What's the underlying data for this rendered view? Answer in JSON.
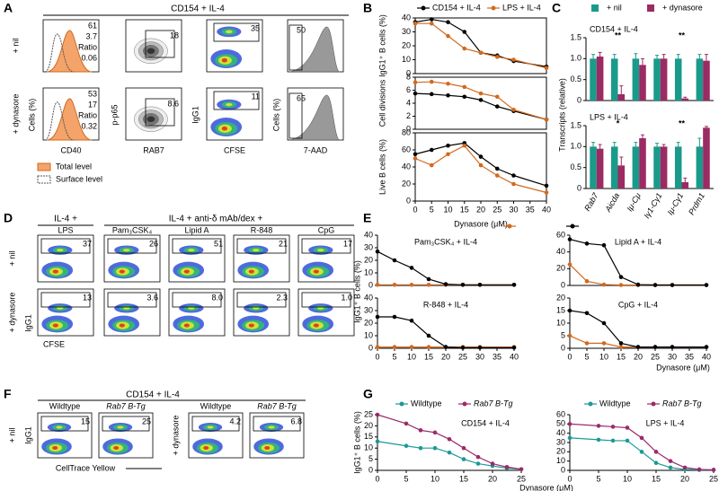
{
  "panel_letters": [
    "A",
    "B",
    "C",
    "D",
    "E",
    "F",
    "G"
  ],
  "flow": {
    "A": {
      "header": "CD154 + IL-4",
      "rows": [
        "+ nil",
        "+ dynasore"
      ],
      "xlabels": [
        "CD40",
        "RAB7",
        "CFSE",
        "7-AAD"
      ],
      "ylabels": [
        "Cells (%)",
        "p-p65",
        "IgG1",
        "Cells (%)"
      ],
      "hist_labels": [
        [
          "61",
          "3.7",
          "Ratio",
          "0.06"
        ],
        [
          "53",
          "17",
          "Ratio",
          "0.32"
        ]
      ],
      "gates": [
        [
          "18",
          "35",
          "50"
        ],
        [
          "8.6",
          "11",
          "65"
        ]
      ],
      "legend": [
        "Total level",
        "Surface level"
      ]
    },
    "D": {
      "headers": [
        "IL-4 +",
        "IL-4 + anti-δ mAb/dex +"
      ],
      "columns": [
        "LPS",
        "Pam₃CSK₄",
        "Lipid A",
        "R-848",
        "CpG"
      ],
      "rows": [
        "+ nil",
        "+ dynasore"
      ],
      "gates": [
        [
          "37",
          "26",
          "51",
          "21",
          "17"
        ],
        [
          "13",
          "3.6",
          "8.0",
          "2.3",
          "1.0"
        ]
      ],
      "xlabel": "CFSE",
      "ylabel": "IgG1"
    },
    "F": {
      "header": "CD154 + IL-4",
      "columns": [
        "Wildtype",
        "Rab7 B-Tg",
        "Wildtype",
        "Rab7 B-Tg"
      ],
      "rows": [
        "+ nil",
        "+ dynasore"
      ],
      "gates": [
        "15",
        "25",
        "4.2",
        "6.8"
      ],
      "xlabel": "CellTrace Yellow",
      "ylabel": "IgG1"
    }
  },
  "chart_data": [
    {
      "type": "line",
      "ylabel": "IgG1⁺ B cells (%)",
      "x": [
        0,
        5,
        10,
        15,
        20,
        25,
        30,
        40
      ],
      "xlim": [
        0,
        40
      ],
      "ylim": [
        0,
        40
      ],
      "yticks": [
        0,
        10,
        20,
        30,
        40
      ],
      "series": [
        {
          "name": "CD154 + IL-4",
          "color": "#000000",
          "values": [
            37,
            39,
            37,
            30,
            15,
            13,
            9,
            5
          ]
        },
        {
          "name": "LPS + IL-4",
          "color": "#d2691e",
          "values": [
            36,
            36,
            27,
            18,
            15,
            12,
            10,
            4
          ]
        }
      ]
    },
    {
      "type": "line",
      "ylabel": "Cell divisions",
      "x": [
        0,
        5,
        10,
        15,
        20,
        25,
        30,
        40
      ],
      "xlim": [
        0,
        40
      ],
      "ylim": [
        0,
        8
      ],
      "yticks": [
        0,
        2,
        4,
        6,
        8
      ],
      "series": [
        {
          "color": "#000000",
          "values": [
            5.5,
            5.4,
            5.2,
            5.0,
            4.5,
            3.5,
            2.8,
            1.5
          ]
        },
        {
          "color": "#d2691e",
          "values": [
            7.2,
            7.3,
            7.0,
            6.5,
            5.5,
            5.0,
            3.0,
            1.5
          ]
        }
      ]
    },
    {
      "type": "line",
      "ylabel": "Live B cells (%)",
      "xlabel": "Dynasore (μM)",
      "x": [
        0,
        5,
        10,
        15,
        20,
        25,
        30,
        40
      ],
      "xlim": [
        0,
        40
      ],
      "xticks": [
        0,
        5,
        10,
        15,
        20,
        25,
        30,
        35,
        40
      ],
      "ylim": [
        0,
        80
      ],
      "yticks": [
        0,
        20,
        40,
        60,
        80
      ],
      "series": [
        {
          "color": "#000000",
          "values": [
            55,
            60,
            65,
            68,
            52,
            38,
            30,
            18
          ]
        },
        {
          "color": "#d2691e",
          "values": [
            50,
            42,
            55,
            65,
            42,
            30,
            20,
            10
          ]
        }
      ]
    },
    {
      "type": "bar",
      "title": "CD154 + IL-4",
      "ylim": [
        0,
        1.5
      ],
      "yticks": [
        0,
        0.5,
        {
          "value": 1,
          "label": "1.0"
        },
        1.5
      ],
      "annotations": [
        null,
        "**",
        null,
        null,
        "**",
        null
      ],
      "series": [
        {
          "name": "+ nil",
          "color": "#1a9a8a",
          "values": [
            1,
            1,
            1,
            1,
            1,
            1
          ],
          "errors": [
            0.1,
            0.1,
            0.12,
            0.08,
            0.1,
            0.1
          ]
        },
        {
          "name": "+ dynasore",
          "color": "#9c2a63",
          "values": [
            1.05,
            0.15,
            0.85,
            1.0,
            0.05,
            0.95
          ],
          "errors": [
            0.1,
            0.2,
            0.15,
            0.1,
            0.03,
            0.15
          ]
        }
      ]
    },
    {
      "type": "bar",
      "title": "LPS + IL-4",
      "ylabel": "Transcripts (relative)",
      "categories": [
        "Rab7",
        "Aicda",
        "Iμ-Cμ",
        "Iγ1-Cγ1",
        "Iμ-Cγ1",
        "Prdm1"
      ],
      "ylim": [
        0,
        1.5
      ],
      "yticks": [
        0,
        0.5,
        {
          "value": 1,
          "label": "1.0"
        },
        1.5
      ],
      "annotations": [
        null,
        "*",
        null,
        null,
        "**",
        null
      ],
      "series": [
        {
          "color": "#1a9a8a",
          "values": [
            1,
            1,
            1,
            1,
            1,
            1
          ],
          "errors": [
            0.1,
            0.1,
            0.1,
            0.08,
            0.1,
            0.2
          ]
        },
        {
          "color": "#9c2a63",
          "values": [
            0.95,
            0.55,
            1.2,
            1.0,
            0.15,
            1.45
          ],
          "errors": [
            0.1,
            0.2,
            0.08,
            0.05,
            0.1,
            0.03
          ]
        }
      ]
    },
    {
      "type": "line",
      "title": "Pam₃CSK₄ + IL-4",
      "x": [
        0,
        5,
        10,
        15,
        20,
        25,
        30,
        40
      ],
      "xlim": [
        0,
        40
      ],
      "ylim": [
        0,
        40
      ],
      "yticks": [
        0,
        10,
        20,
        30,
        40
      ],
      "series": [
        {
          "name": "+ nil",
          "color": "#d2691e",
          "values": [
            0.5,
            0.5,
            0.5,
            0.5,
            0.5,
            0.5,
            0.5,
            0.5
          ]
        },
        {
          "name": "+ anti-δ mAb/dex",
          "color": "#000000",
          "values": [
            27,
            20,
            14,
            5,
            1,
            0.5,
            0.5,
            0.5
          ]
        }
      ]
    },
    {
      "type": "line",
      "title": "Lipid A + IL-4",
      "x": [
        0,
        5,
        10,
        15,
        20,
        25,
        30,
        40
      ],
      "xlim": [
        0,
        40
      ],
      "ylim": [
        0,
        60
      ],
      "yticks": [
        0,
        20,
        40,
        60
      ],
      "series": [
        {
          "color": "#d2691e",
          "values": [
            25,
            5,
            1,
            0.5,
            0.5,
            0.5,
            0.5,
            0.5
          ]
        },
        {
          "color": "#000000",
          "values": [
            55,
            50,
            48,
            10,
            1,
            0.5,
            0.5,
            0.5
          ]
        }
      ]
    },
    {
      "type": "line",
      "title": "R-848 + IL-4",
      "ylabel": "IgG1⁺ B cells (%)",
      "x": [
        0,
        5,
        10,
        15,
        20,
        25,
        30,
        40
      ],
      "xlim": [
        0,
        40
      ],
      "xticks": [
        0,
        5,
        10,
        15,
        20,
        25,
        30,
        35,
        40
      ],
      "ylim": [
        0,
        40
      ],
      "yticks": [
        0,
        10,
        20,
        30,
        40
      ],
      "series": [
        {
          "color": "#d2691e",
          "values": [
            1,
            1,
            1,
            1,
            1,
            1,
            1,
            1
          ]
        },
        {
          "color": "#000000",
          "values": [
            25,
            25,
            22,
            10,
            1,
            0.5,
            0.5,
            0.5
          ]
        }
      ]
    },
    {
      "type": "line",
      "title": "CpG + IL-4",
      "xlabel": "Dynasore (μM)",
      "x": [
        0,
        5,
        10,
        15,
        20,
        25,
        30,
        40
      ],
      "xlim": [
        0,
        40
      ],
      "xticks": [
        0,
        5,
        10,
        15,
        20,
        25,
        30,
        35,
        40
      ],
      "ylim": [
        0,
        20
      ],
      "yticks": [
        0,
        5,
        10,
        15,
        20
      ],
      "series": [
        {
          "color": "#d2691e",
          "values": [
            5,
            2,
            2,
            0.5,
            0.5,
            0.5,
            0.5,
            0.5
          ]
        },
        {
          "color": "#000000",
          "values": [
            15,
            14,
            10,
            2,
            0.5,
            0.5,
            0.5,
            0.5
          ]
        }
      ]
    },
    {
      "type": "line",
      "title": "CD154 + IL-4",
      "ylabel": "IgG1⁺ B cells (%)",
      "xlabel": "Dynasore (μM)",
      "x": [
        0,
        5,
        7.5,
        10,
        12.5,
        15,
        17.5,
        20,
        22.5,
        25
      ],
      "xlim": [
        0,
        25
      ],
      "xticks": [
        0,
        5,
        10,
        15,
        20,
        25
      ],
      "ylim": [
        0,
        25
      ],
      "yticks": [
        0,
        5,
        10,
        15,
        20,
        25
      ],
      "series": [
        {
          "name": "Wildtype",
          "color": "#1b9a95",
          "values": [
            13,
            11,
            10,
            10,
            8,
            5,
            3,
            2,
            1,
            0.5
          ]
        },
        {
          "name": "Rab7 B-Tg",
          "color": "#9b2a6a",
          "values": [
            25,
            21,
            18,
            17,
            14,
            10,
            6,
            3,
            1.5,
            0.5
          ]
        }
      ]
    },
    {
      "type": "line",
      "title": "LPS + IL-4",
      "x": [
        0,
        5,
        7.5,
        10,
        12.5,
        15,
        17.5,
        20,
        22.5,
        25
      ],
      "xlim": [
        0,
        25
      ],
      "xticks": [
        0,
        5,
        10,
        15,
        20,
        25
      ],
      "ylim": [
        0,
        60
      ],
      "yticks": [
        0,
        10,
        20,
        30,
        40,
        50,
        60
      ],
      "series": [
        {
          "name": "Wildtype",
          "color": "#1b9a95",
          "values": [
            35,
            33,
            32,
            32,
            20,
            8,
            3,
            1,
            0.5,
            0.5
          ]
        },
        {
          "name": "Rab7 B-Tg",
          "color": "#9b2a6a",
          "values": [
            50,
            48,
            47,
            46,
            35,
            20,
            10,
            3,
            1,
            0.5
          ]
        }
      ]
    }
  ]
}
